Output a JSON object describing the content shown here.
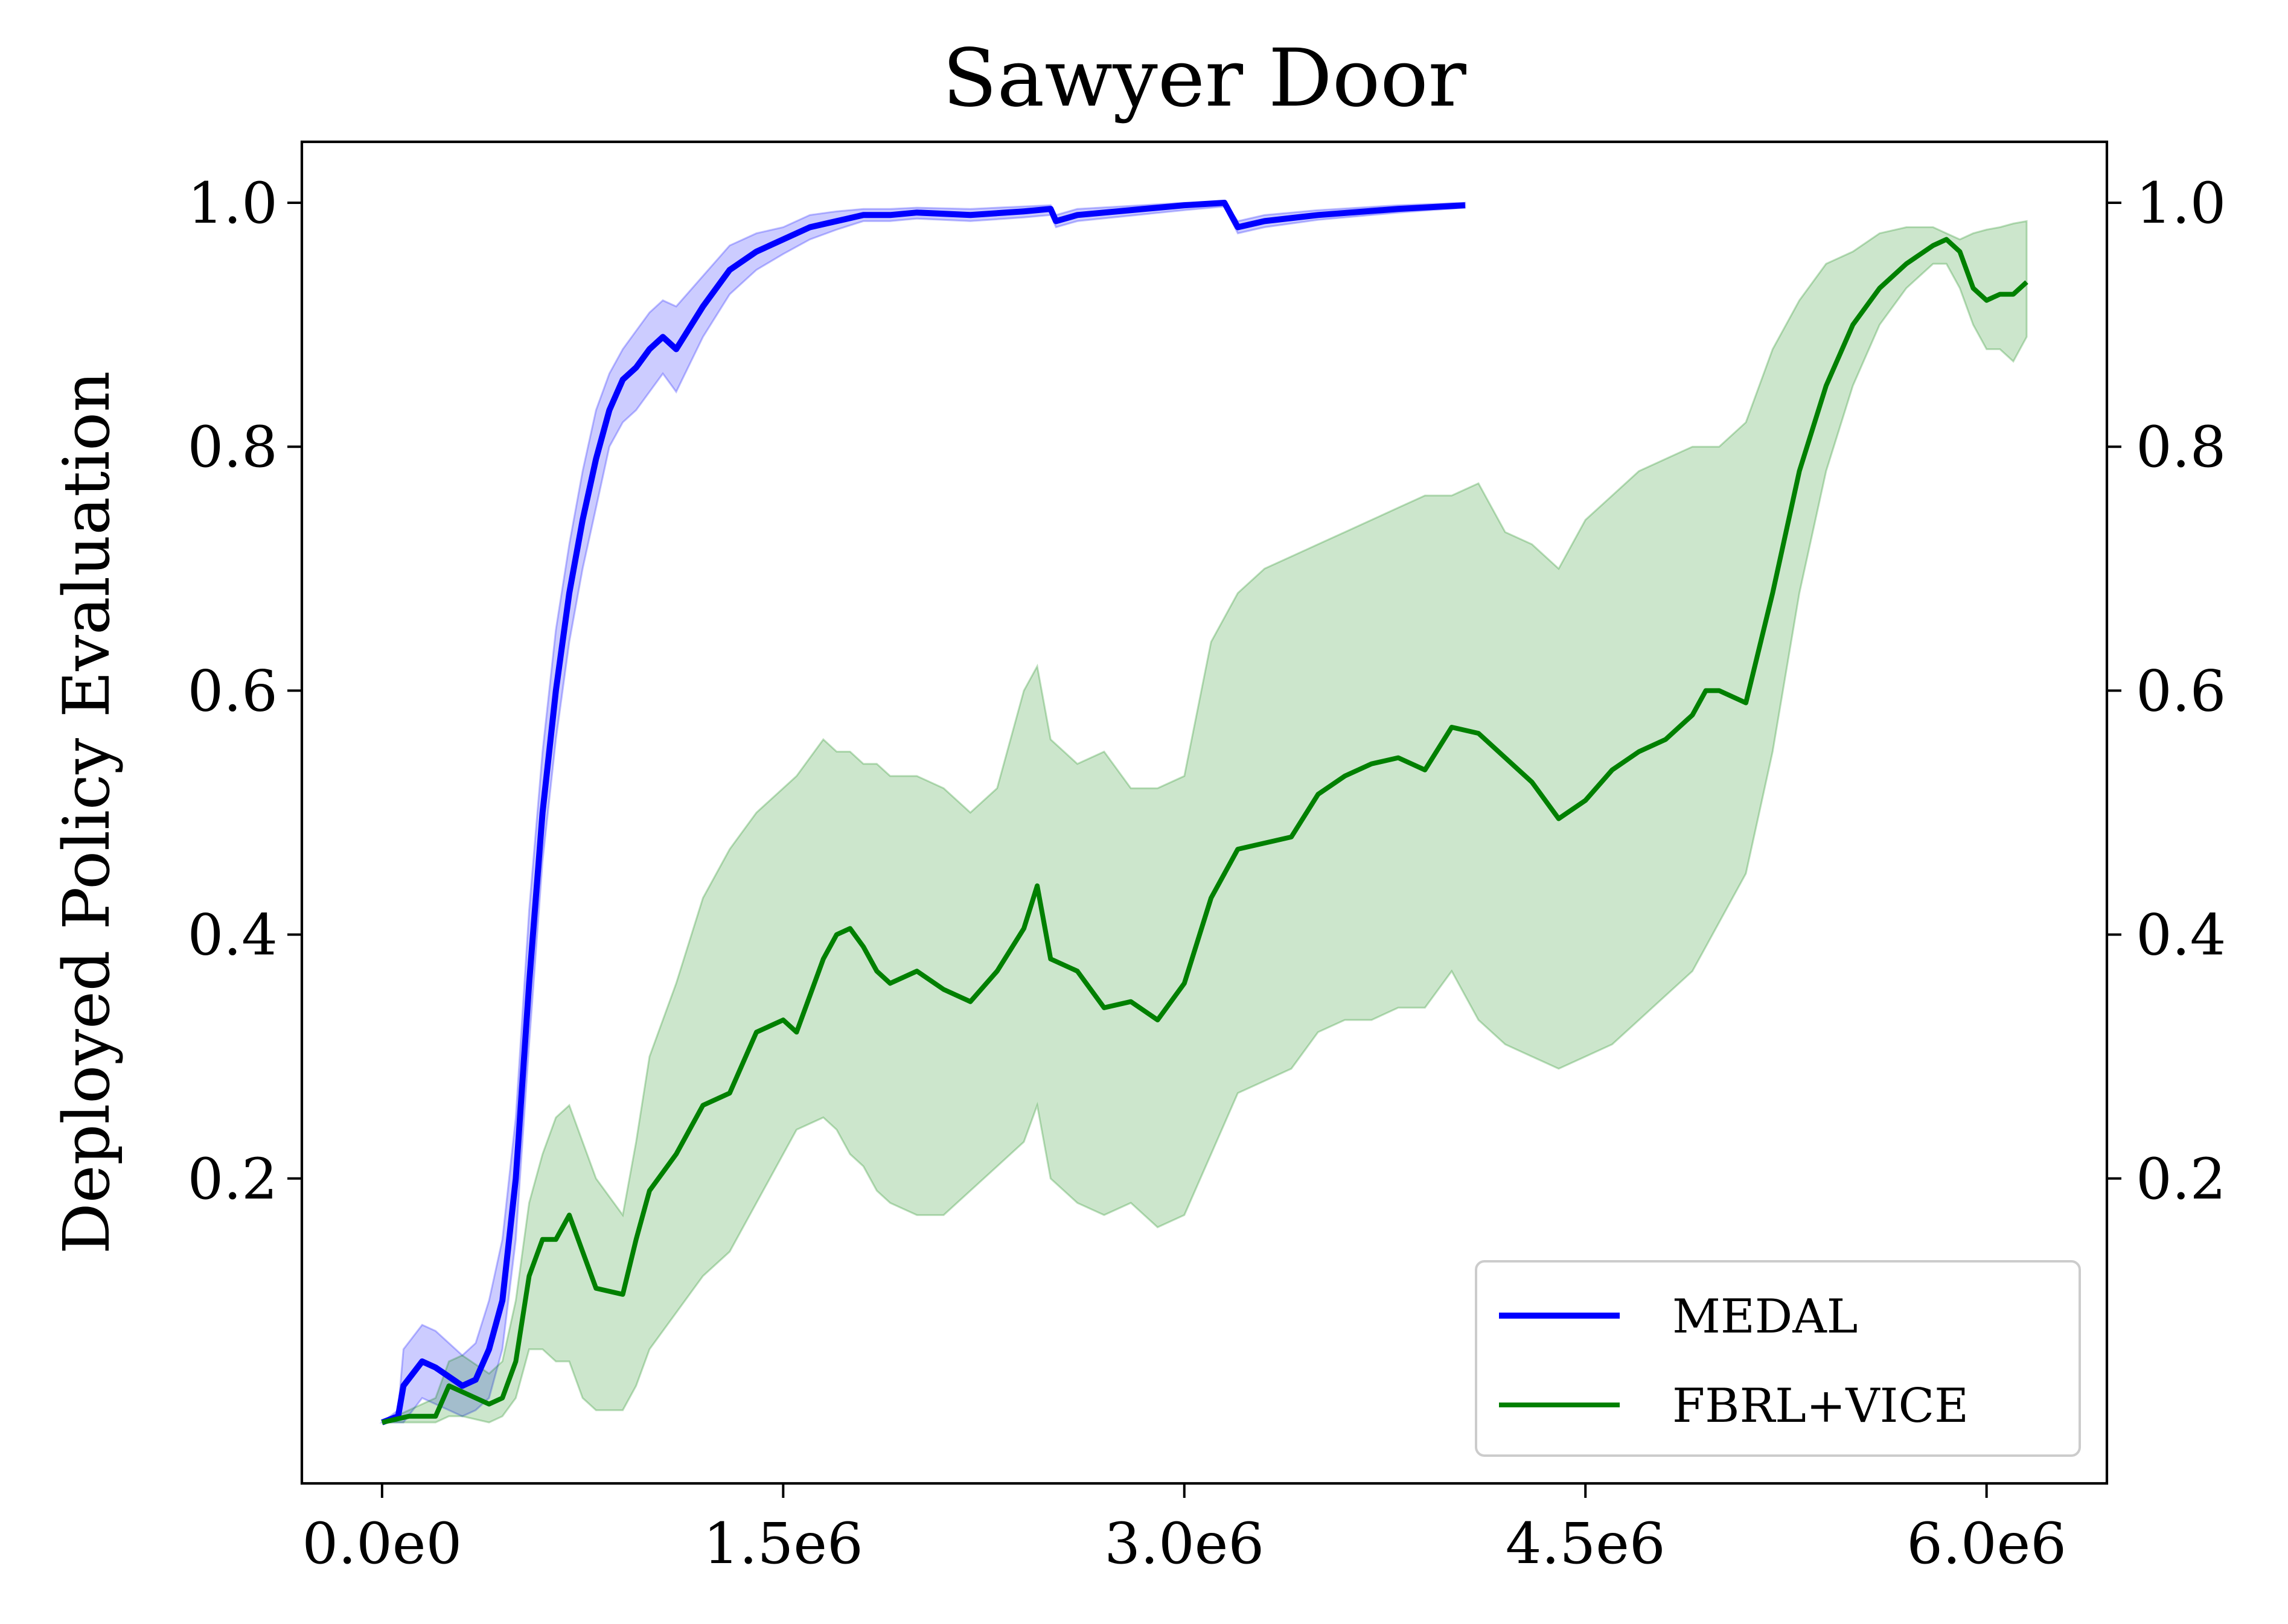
{
  "chart_data": {
    "type": "line",
    "title": "Sawyer Door",
    "xlabel": "",
    "ylabel": "Deployed Policy Evaluation",
    "xlim": [
      -300000,
      6450000
    ],
    "ylim": [
      -0.05,
      1.05
    ],
    "x_ticks": [
      0,
      1500000,
      3000000,
      4500000,
      6000000
    ],
    "x_tick_labels": [
      "0.0e0",
      "1.5e6",
      "3.0e6",
      "4.5e6",
      "6.0e6"
    ],
    "y_ticks": [
      0.2,
      0.4,
      0.6,
      0.8,
      1.0
    ],
    "y_tick_labels": [
      "0.2",
      "0.4",
      "0.6",
      "0.8",
      "1.0"
    ],
    "secondary_y_axis": true,
    "grid": false,
    "legend_position": "lower right",
    "series": [
      {
        "name": "MEDAL",
        "color": "#0000ff",
        "band_color": "#0000ff",
        "x": [
          0,
          60000,
          80000,
          150000,
          200000,
          300000,
          350000,
          400000,
          450000,
          500000,
          550000,
          600000,
          650000,
          700000,
          750000,
          800000,
          850000,
          900000,
          950000,
          1000000,
          1050000,
          1100000,
          1200000,
          1300000,
          1400000,
          1500000,
          1600000,
          1700000,
          1800000,
          1900000,
          2000000,
          2200000,
          2400000,
          2500000,
          2520000,
          2600000,
          3000000,
          3150000,
          3200000,
          3300000,
          3500000,
          3800000,
          4050000
        ],
        "y": [
          0.0,
          0.005,
          0.03,
          0.05,
          0.045,
          0.03,
          0.035,
          0.06,
          0.1,
          0.2,
          0.36,
          0.5,
          0.6,
          0.68,
          0.74,
          0.79,
          0.83,
          0.855,
          0.865,
          0.88,
          0.89,
          0.88,
          0.915,
          0.945,
          0.96,
          0.97,
          0.98,
          0.985,
          0.99,
          0.99,
          0.992,
          0.99,
          0.993,
          0.995,
          0.985,
          0.99,
          0.998,
          1.0,
          0.98,
          0.985,
          0.99,
          0.995,
          0.998
        ],
        "lower": [
          0.0,
          0.0,
          0.0,
          0.02,
          0.015,
          0.005,
          0.01,
          0.02,
          0.06,
          0.15,
          0.31,
          0.46,
          0.56,
          0.64,
          0.7,
          0.75,
          0.8,
          0.82,
          0.83,
          0.845,
          0.86,
          0.845,
          0.89,
          0.925,
          0.945,
          0.958,
          0.97,
          0.978,
          0.985,
          0.985,
          0.987,
          0.985,
          0.988,
          0.99,
          0.98,
          0.985,
          0.994,
          0.997,
          0.975,
          0.98,
          0.986,
          0.992,
          0.996
        ],
        "upper": [
          0.0,
          0.01,
          0.06,
          0.08,
          0.075,
          0.055,
          0.065,
          0.1,
          0.15,
          0.25,
          0.42,
          0.55,
          0.65,
          0.72,
          0.78,
          0.83,
          0.86,
          0.88,
          0.895,
          0.91,
          0.92,
          0.915,
          0.94,
          0.965,
          0.975,
          0.98,
          0.99,
          0.993,
          0.995,
          0.995,
          0.996,
          0.995,
          0.997,
          0.998,
          0.99,
          0.995,
          1.0,
          1.0,
          0.985,
          0.99,
          0.994,
          0.998,
          1.0
        ]
      },
      {
        "name": "FBRL+VICE",
        "color": "#008000",
        "band_color": "#008000",
        "x": [
          0,
          100000,
          200000,
          250000,
          300000,
          400000,
          450000,
          500000,
          550000,
          600000,
          650000,
          700000,
          750000,
          800000,
          900000,
          950000,
          1000000,
          1100000,
          1200000,
          1300000,
          1400000,
          1500000,
          1550000,
          1650000,
          1700000,
          1750000,
          1800000,
          1850000,
          1900000,
          2000000,
          2100000,
          2200000,
          2300000,
          2400000,
          2450000,
          2500000,
          2600000,
          2700000,
          2800000,
          2900000,
          3000000,
          3100000,
          3200000,
          3300000,
          3400000,
          3500000,
          3600000,
          3700000,
          3800000,
          3900000,
          4000000,
          4100000,
          4200000,
          4300000,
          4400000,
          4500000,
          4600000,
          4700000,
          4800000,
          4900000,
          4950000,
          5000000,
          5100000,
          5200000,
          5300000,
          5400000,
          5500000,
          5600000,
          5700000,
          5800000,
          5850000,
          5900000,
          5950000,
          6000000,
          6050000,
          6100000,
          6150000
        ],
        "y": [
          0.0,
          0.005,
          0.005,
          0.03,
          0.025,
          0.015,
          0.02,
          0.05,
          0.12,
          0.15,
          0.15,
          0.17,
          0.14,
          0.11,
          0.105,
          0.15,
          0.19,
          0.22,
          0.26,
          0.27,
          0.32,
          0.33,
          0.32,
          0.38,
          0.4,
          0.405,
          0.39,
          0.37,
          0.36,
          0.37,
          0.355,
          0.345,
          0.37,
          0.405,
          0.44,
          0.38,
          0.37,
          0.34,
          0.345,
          0.33,
          0.36,
          0.43,
          0.47,
          0.475,
          0.48,
          0.515,
          0.53,
          0.54,
          0.545,
          0.535,
          0.57,
          0.565,
          0.545,
          0.525,
          0.495,
          0.51,
          0.535,
          0.55,
          0.56,
          0.58,
          0.6,
          0.6,
          0.59,
          0.68,
          0.78,
          0.85,
          0.9,
          0.93,
          0.95,
          0.965,
          0.97,
          0.96,
          0.93,
          0.92,
          0.925,
          0.925,
          0.935
        ],
        "lower": [
          0.0,
          0.0,
          0.0,
          0.005,
          0.005,
          0.0,
          0.005,
          0.02,
          0.06,
          0.06,
          0.05,
          0.05,
          0.02,
          0.01,
          0.01,
          0.03,
          0.06,
          0.09,
          0.12,
          0.14,
          0.18,
          0.22,
          0.24,
          0.25,
          0.24,
          0.22,
          0.21,
          0.19,
          0.18,
          0.17,
          0.17,
          0.19,
          0.21,
          0.23,
          0.26,
          0.2,
          0.18,
          0.17,
          0.18,
          0.16,
          0.17,
          0.22,
          0.27,
          0.28,
          0.29,
          0.32,
          0.33,
          0.33,
          0.34,
          0.34,
          0.37,
          0.33,
          0.31,
          0.3,
          0.29,
          0.3,
          0.31,
          0.33,
          0.35,
          0.37,
          0.39,
          0.41,
          0.45,
          0.55,
          0.68,
          0.78,
          0.85,
          0.9,
          0.93,
          0.95,
          0.95,
          0.93,
          0.9,
          0.88,
          0.88,
          0.87,
          0.89
        ],
        "upper": [
          0.0,
          0.01,
          0.02,
          0.05,
          0.055,
          0.04,
          0.05,
          0.1,
          0.18,
          0.22,
          0.25,
          0.26,
          0.23,
          0.2,
          0.17,
          0.23,
          0.3,
          0.36,
          0.43,
          0.47,
          0.5,
          0.52,
          0.53,
          0.56,
          0.55,
          0.55,
          0.54,
          0.54,
          0.53,
          0.53,
          0.52,
          0.5,
          0.52,
          0.6,
          0.62,
          0.56,
          0.54,
          0.55,
          0.52,
          0.52,
          0.53,
          0.64,
          0.68,
          0.7,
          0.71,
          0.72,
          0.73,
          0.74,
          0.75,
          0.76,
          0.76,
          0.77,
          0.73,
          0.72,
          0.7,
          0.74,
          0.76,
          0.78,
          0.79,
          0.8,
          0.8,
          0.8,
          0.82,
          0.88,
          0.92,
          0.95,
          0.96,
          0.975,
          0.98,
          0.98,
          0.975,
          0.97,
          0.975,
          0.978,
          0.98,
          0.983,
          0.985
        ]
      }
    ]
  }
}
